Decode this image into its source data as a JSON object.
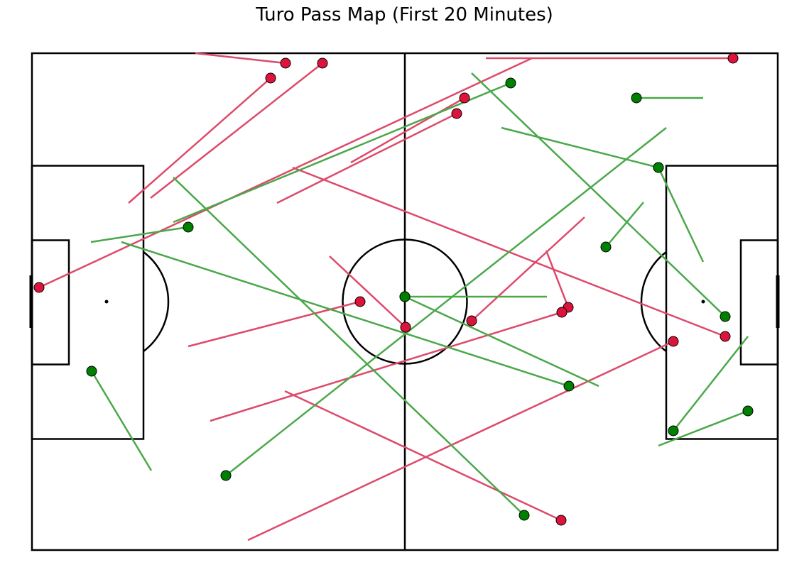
{
  "chart_data": {
    "type": "scatter",
    "title": "Turo Pass Map (First 20 Minutes)",
    "xlim": [
      0,
      105
    ],
    "ylim": [
      0,
      70
    ],
    "grid": false,
    "colors": {
      "successful": "#4aa84a",
      "unsuccessful": "#dd4a6a",
      "successful_dot": "#008000",
      "unsuccessful_dot": "#dc143c"
    },
    "passes": [
      {
        "start": [
          61.9,
          32.3
        ],
        "end": [
          77.8,
          46.9
        ],
        "outcome": "unsuccessful"
      },
      {
        "start": [
          75.5,
          34.2
        ],
        "end": [
          72.4,
          42.2
        ],
        "outcome": "unsuccessful"
      },
      {
        "start": [
          52.6,
          31.4
        ],
        "end": [
          41.9,
          41.4
        ],
        "outcome": "unsuccessful"
      },
      {
        "start": [
          46.2,
          35.0
        ],
        "end": [
          22.0,
          28.7
        ],
        "outcome": "unsuccessful"
      },
      {
        "start": [
          74.6,
          33.5
        ],
        "end": [
          25.1,
          18.2
        ],
        "outcome": "unsuccessful"
      },
      {
        "start": [
          97.6,
          30.1
        ],
        "end": [
          36.7,
          53.9
        ],
        "outcome": "unsuccessful"
      },
      {
        "start": [
          90.3,
          29.4
        ],
        "end": [
          30.4,
          1.4
        ],
        "outcome": "unsuccessful"
      },
      {
        "start": [
          74.5,
          4.2
        ],
        "end": [
          35.6,
          22.4
        ],
        "outcome": "unsuccessful"
      },
      {
        "start": [
          1.0,
          37.0
        ],
        "end": [
          70.4,
          69.3
        ],
        "outcome": "unsuccessful"
      },
      {
        "start": [
          59.8,
          61.5
        ],
        "end": [
          34.5,
          48.9
        ],
        "outcome": "unsuccessful"
      },
      {
        "start": [
          60.9,
          63.7
        ],
        "end": [
          44.9,
          54.6
        ],
        "outcome": "unsuccessful"
      },
      {
        "start": [
          33.6,
          66.5
        ],
        "end": [
          13.6,
          48.9
        ],
        "outcome": "unsuccessful"
      },
      {
        "start": [
          35.7,
          68.6
        ],
        "end": [
          23.0,
          70.0
        ],
        "outcome": "unsuccessful"
      },
      {
        "start": [
          40.9,
          68.6
        ],
        "end": [
          16.7,
          49.6
        ],
        "outcome": "unsuccessful"
      },
      {
        "start": [
          98.7,
          69.3
        ],
        "end": [
          63.9,
          69.3
        ],
        "outcome": "unsuccessful"
      },
      {
        "start": [
          52.5,
          35.7
        ],
        "end": [
          72.5,
          35.7
        ],
        "outcome": "successful"
      },
      {
        "start": [
          52.5,
          35.7
        ],
        "end": [
          79.8,
          23.1
        ],
        "outcome": "successful"
      },
      {
        "start": [
          75.6,
          23.1
        ],
        "end": [
          12.6,
          43.4
        ],
        "outcome": "successful"
      },
      {
        "start": [
          27.3,
          10.5
        ],
        "end": [
          89.3,
          59.5
        ],
        "outcome": "successful"
      },
      {
        "start": [
          69.3,
          4.9
        ],
        "end": [
          19.9,
          52.5
        ],
        "outcome": "successful"
      },
      {
        "start": [
          8.4,
          25.2
        ],
        "end": [
          16.8,
          11.2
        ],
        "outcome": "successful"
      },
      {
        "start": [
          22.0,
          45.5
        ],
        "end": [
          8.3,
          43.4
        ],
        "outcome": "successful"
      },
      {
        "start": [
          67.4,
          65.8
        ],
        "end": [
          19.9,
          46.2
        ],
        "outcome": "successful"
      },
      {
        "start": [
          80.8,
          42.7
        ],
        "end": [
          86.1,
          49.0
        ],
        "outcome": "successful"
      },
      {
        "start": [
          88.2,
          53.9
        ],
        "end": [
          66.1,
          59.5
        ],
        "outcome": "successful"
      },
      {
        "start": [
          88.2,
          53.9
        ],
        "end": [
          94.5,
          40.6
        ],
        "outcome": "successful"
      },
      {
        "start": [
          85.1,
          63.7
        ],
        "end": [
          94.5,
          63.7
        ],
        "outcome": "successful"
      },
      {
        "start": [
          97.6,
          32.9
        ],
        "end": [
          61.9,
          67.2
        ],
        "outcome": "successful"
      },
      {
        "start": [
          90.3,
          16.8
        ],
        "end": [
          100.8,
          30.1
        ],
        "outcome": "successful"
      },
      {
        "start": [
          100.8,
          19.6
        ],
        "end": [
          88.2,
          14.7
        ],
        "outcome": "successful"
      }
    ]
  }
}
